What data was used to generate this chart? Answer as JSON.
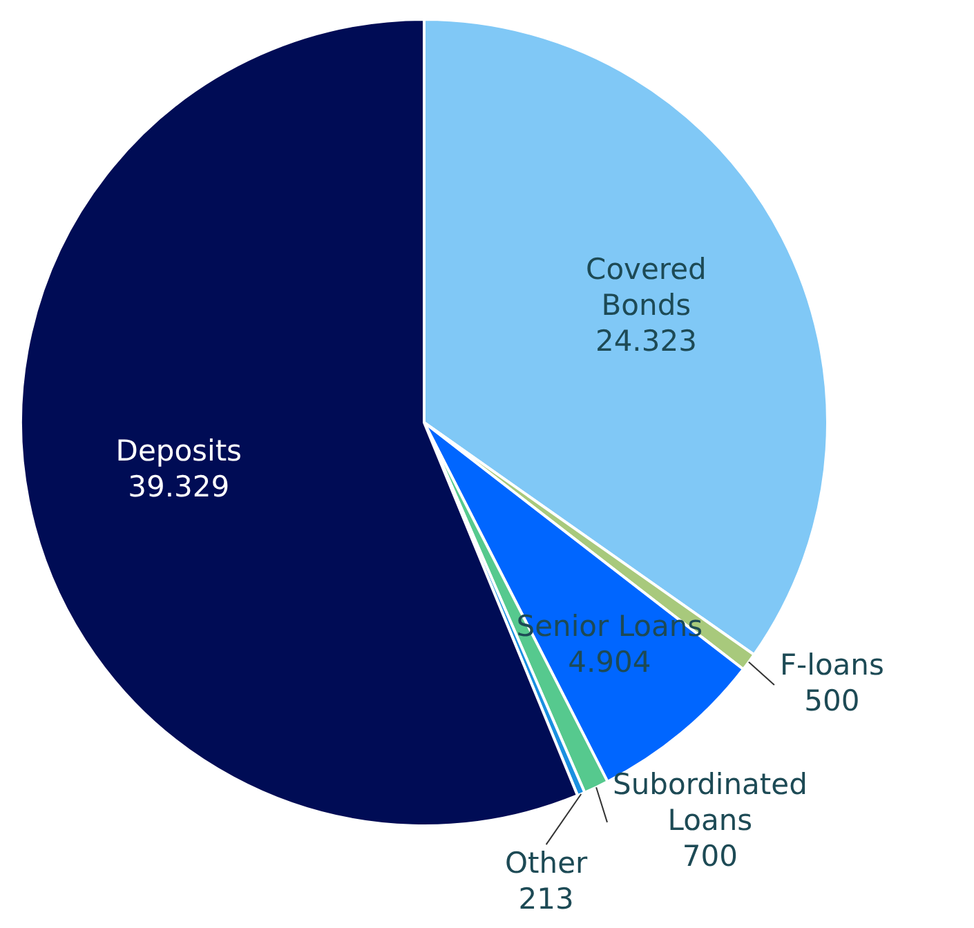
{
  "chart_data": {
    "type": "pie",
    "categories": [
      "Covered Bonds",
      "F-loans",
      "Senior Loans",
      "Subordinated Loans",
      "Other",
      "Deposits"
    ],
    "values": [
      24323,
      500,
      4904,
      700,
      213,
      39329
    ],
    "value_labels": [
      "24.323",
      "500",
      "4.904",
      "700",
      "213",
      "39.329"
    ],
    "colors": [
      "#80c8f6",
      "#a8c97c",
      "#0066ff",
      "#56c98e",
      "#1a90e0",
      "#000c55"
    ],
    "legend": false
  }
}
